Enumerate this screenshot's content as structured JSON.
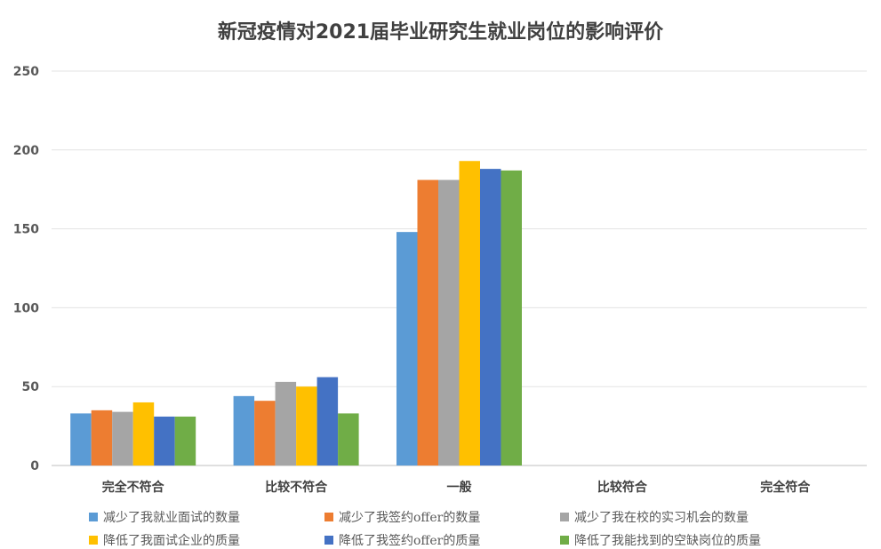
{
  "chart_data": {
    "type": "bar",
    "title": "新冠疫情对2021届毕业研究生就业岗位的影响评价",
    "xlabel": "",
    "ylabel": "",
    "ylim": [
      0,
      250
    ],
    "yticks": [
      0,
      50,
      100,
      150,
      200,
      250
    ],
    "grid": true,
    "legend_position": "bottom",
    "categories": [
      "完全不符合",
      "比较不符合",
      "一般",
      "比较符合",
      "完全符合"
    ],
    "series": [
      {
        "name": "减少了我就业面试的数量",
        "color": "#5B9BD5",
        "values": [
          33,
          44,
          148,
          0,
          0
        ]
      },
      {
        "name": "减少了我签约offer的数量",
        "color": "#ED7D31",
        "values": [
          35,
          41,
          181,
          0,
          0
        ]
      },
      {
        "name": "减少了我在校的实习机会的数量",
        "color": "#A5A5A5",
        "values": [
          34,
          53,
          181,
          0,
          0
        ]
      },
      {
        "name": "降低了我面试企业的质量",
        "color": "#FFC000",
        "values": [
          40,
          50,
          193,
          0,
          0
        ]
      },
      {
        "name": "降低了我签约offer的质量",
        "color": "#4472C4",
        "values": [
          31,
          56,
          188,
          0,
          0
        ]
      },
      {
        "name": "降低了我能找到的空缺岗位的质量",
        "color": "#70AD47",
        "values": [
          31,
          33,
          187,
          0,
          0
        ]
      }
    ]
  }
}
